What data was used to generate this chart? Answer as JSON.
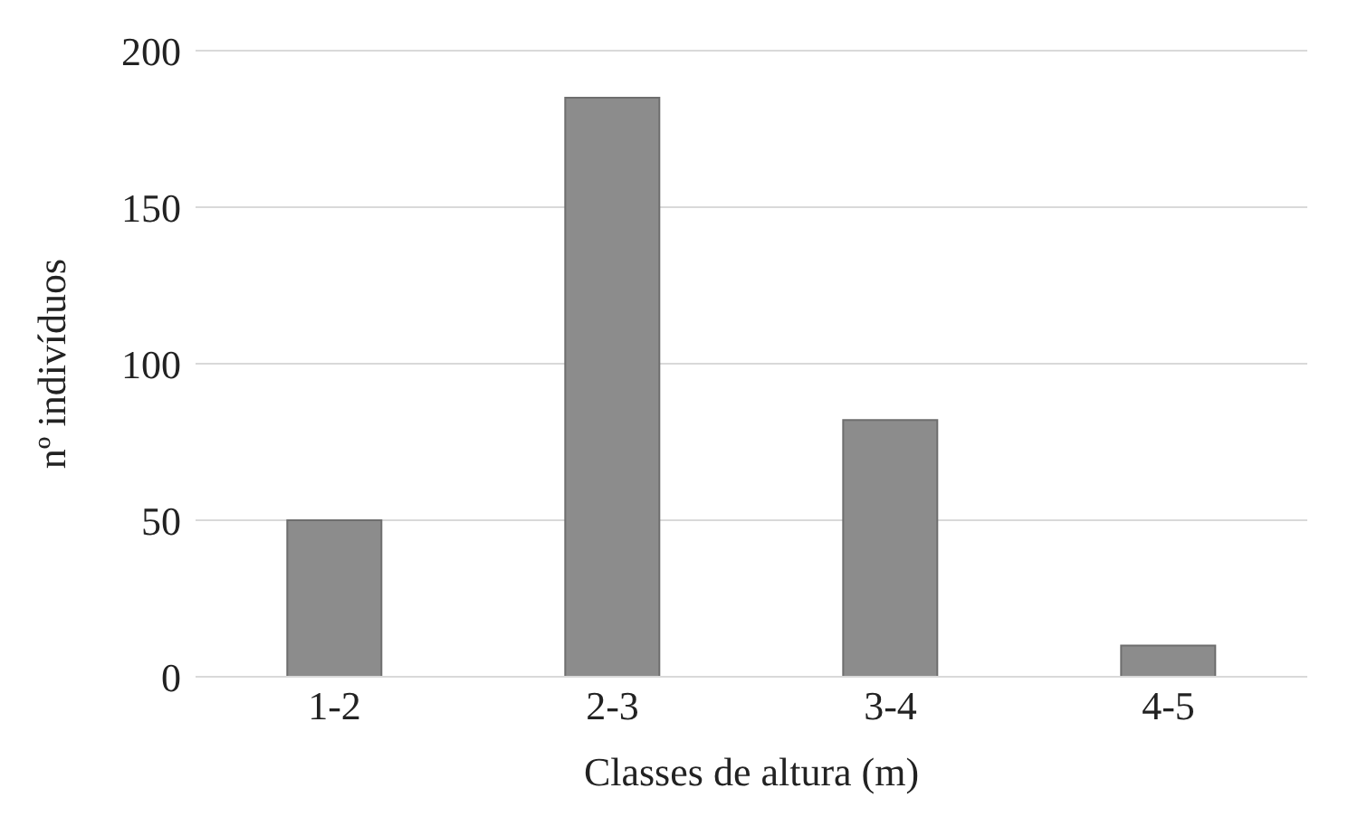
{
  "chart_data": {
    "type": "bar",
    "xlabel": "Classes de altura (m)",
    "ylabel": "nº indivíduos",
    "categories": [
      "1-2",
      "2-3",
      "3-4",
      "4-5"
    ],
    "values": [
      50,
      185,
      82,
      10
    ],
    "color": "#8c8c8c",
    "ylim": [
      0,
      200
    ],
    "yticks": [
      0,
      50,
      100,
      150,
      200
    ],
    "grid": "y"
  }
}
